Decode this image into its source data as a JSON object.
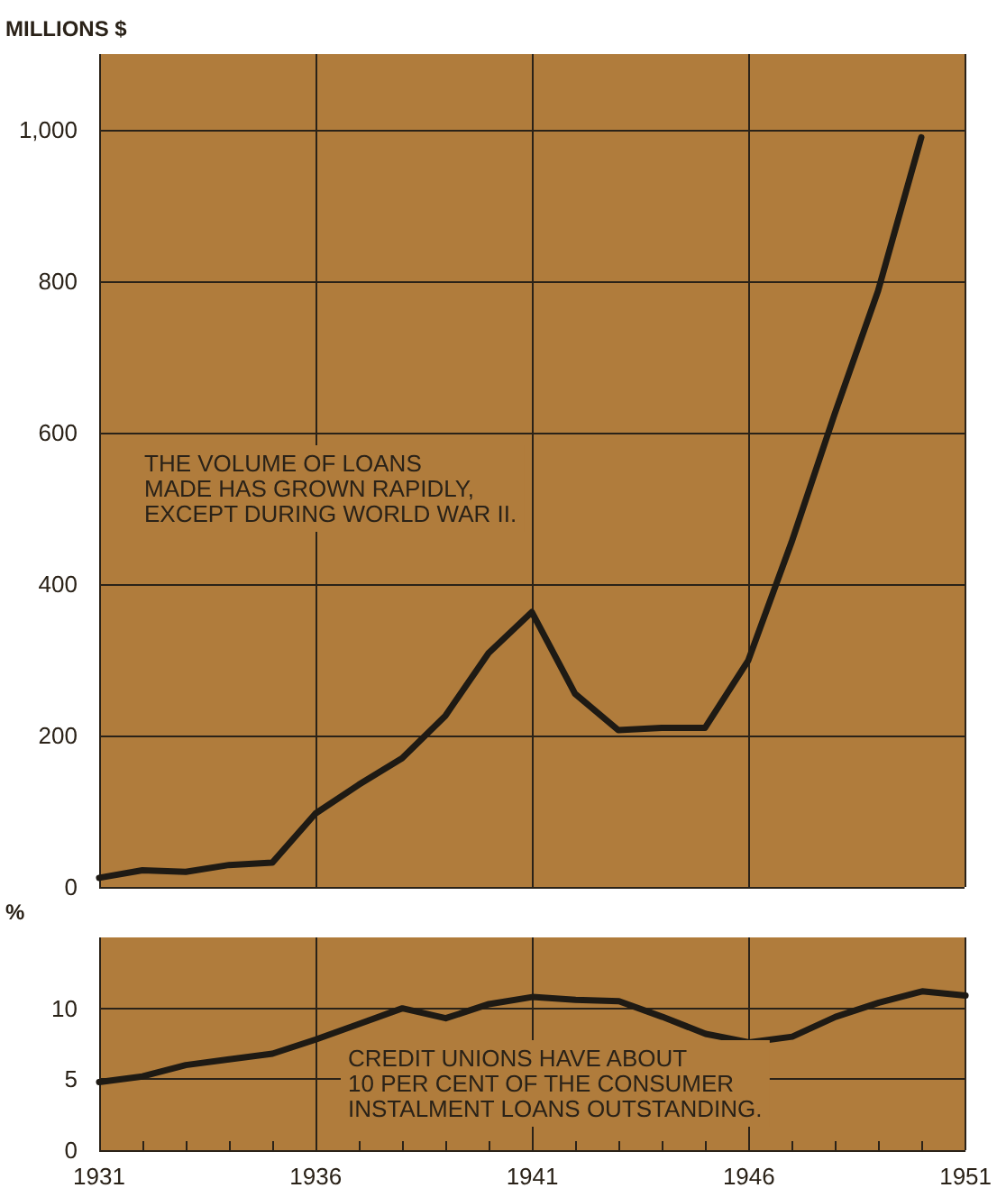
{
  "chart_data": [
    {
      "type": "line",
      "ylabel": "MILLIONS $",
      "annotations": [
        "THE VOLUME OF LOANS\nMADE HAS GROWN RAPIDLY,\nEXCEPT DURING WORLD WAR II."
      ],
      "x": [
        1931,
        1932,
        1933,
        1934,
        1935,
        1936,
        1937,
        1938,
        1939,
        1940,
        1941,
        1942,
        1943,
        1944,
        1945,
        1946,
        1947,
        1948,
        1949,
        1950
      ],
      "series": [
        {
          "color": "#1e1a14",
          "values": [
            12,
            22,
            20,
            29,
            32,
            97,
            135,
            170,
            226,
            309,
            363,
            255,
            207,
            210,
            210,
            299,
            455,
            625,
            787,
            990
          ]
        }
      ],
      "xlim": [
        1931,
        1951
      ],
      "xticks": [
        1931,
        1936,
        1941,
        1946,
        1951
      ],
      "ylim": [
        0,
        1100
      ],
      "yticks": [
        0,
        200,
        400,
        600,
        800,
        {
          "value": 1000,
          "label": "1,000"
        }
      ],
      "tick_labels": "y",
      "grid": true,
      "marker": "none",
      "line_style": "solid"
    },
    {
      "type": "line",
      "ylabel": "%",
      "annotations": [
        "CREDIT UNIONS HAVE ABOUT\n10 PER CENT OF THE CONSUMER\nINSTALMENT LOANS OUTSTANDING."
      ],
      "x": [
        1931,
        1932,
        1933,
        1934,
        1935,
        1936,
        1937,
        1938,
        1939,
        1940,
        1941,
        1942,
        1943,
        1944,
        1945,
        1946,
        1947,
        1948,
        1949,
        1950,
        1951
      ],
      "series": [
        {
          "color": "#1e1a14",
          "values": [
            4.8,
            5.2,
            6.0,
            6.4,
            6.8,
            7.8,
            8.9,
            10.0,
            9.3,
            10.3,
            10.8,
            10.6,
            10.5,
            9.4,
            8.2,
            7.6,
            8.0,
            9.4,
            10.4,
            11.2,
            10.9
          ]
        }
      ],
      "xlim": [
        1931,
        1951
      ],
      "xticks": [
        1931,
        {
          "value": 1932,
          "label": null
        },
        {
          "value": 1933,
          "label": null
        },
        {
          "value": 1934,
          "label": null
        },
        {
          "value": 1935,
          "label": null
        },
        1936,
        {
          "value": 1937,
          "label": null
        },
        {
          "value": 1938,
          "label": null
        },
        {
          "value": 1939,
          "label": null
        },
        {
          "value": 1940,
          "label": null
        },
        1941,
        {
          "value": 1942,
          "label": null
        },
        {
          "value": 1943,
          "label": null
        },
        {
          "value": 1944,
          "label": null
        },
        {
          "value": 1945,
          "label": null
        },
        1946,
        {
          "value": 1947,
          "label": null
        },
        {
          "value": 1948,
          "label": null
        },
        {
          "value": 1949,
          "label": null
        },
        {
          "value": 1950,
          "label": null
        },
        1951
      ],
      "ylim": [
        0,
        15
      ],
      "yticks": [
        0,
        5,
        10
      ],
      "grid": true,
      "marker": "none",
      "line_style": "solid"
    }
  ]
}
